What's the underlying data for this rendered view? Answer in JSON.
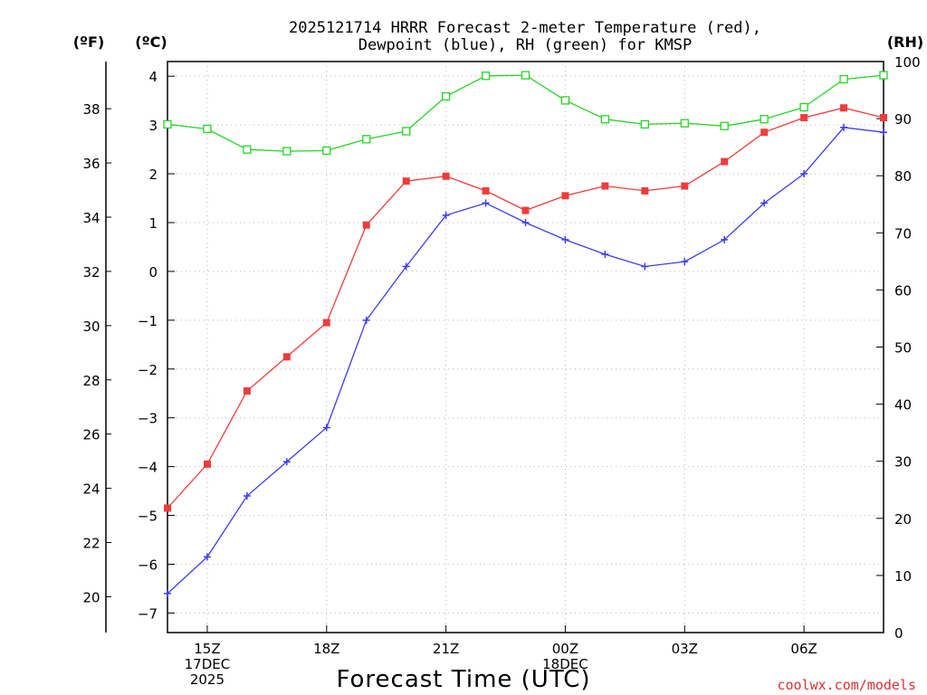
{
  "chart_data": {
    "type": "line",
    "title_lines": [
      "2025121714 HRRR Forecast 2-meter Temperature (red),",
      "Dewpoint (blue), RH (green) for KMSP"
    ],
    "xlabel": "Forecast Time (UTC)",
    "credit": "coolwx.com/models",
    "units": {
      "fahrenheit": "(ºF)",
      "celsius": "(ºC)",
      "rh": "(RH)"
    },
    "x_hours": [
      14,
      15,
      16,
      17,
      18,
      19,
      20,
      21,
      22,
      23,
      24,
      25,
      26,
      27,
      28,
      29,
      30,
      31,
      32
    ],
    "x_range": [
      14,
      32
    ],
    "x_ticks": [
      {
        "hour": 15,
        "lines": [
          "15Z",
          "17DEC",
          "2025"
        ]
      },
      {
        "hour": 18,
        "lines": [
          "18Z"
        ]
      },
      {
        "hour": 21,
        "lines": [
          "21Z"
        ]
      },
      {
        "hour": 24,
        "lines": [
          "00Z",
          "18DEC"
        ]
      },
      {
        "hour": 27,
        "lines": [
          "03Z"
        ]
      },
      {
        "hour": 30,
        "lines": [
          "06Z"
        ]
      }
    ],
    "celsius_axis": {
      "range": [
        -7.4,
        4.3
      ],
      "ticks": [
        "-7",
        "-6",
        "-5",
        "-4",
        "-3",
        "-2",
        "-1",
        "0",
        "1",
        "2",
        "3",
        "4"
      ]
    },
    "fahrenheit_axis": {
      "ticks": [
        "20",
        "22",
        "24",
        "26",
        "28",
        "30",
        "32",
        "34",
        "36",
        "38"
      ]
    },
    "rh_axis": {
      "range": [
        0,
        100
      ],
      "ticks": [
        "0",
        "10",
        "20",
        "30",
        "40",
        "50",
        "60",
        "70",
        "80",
        "90",
        "100"
      ]
    },
    "series": [
      {
        "name": "2-meter Temperature",
        "axis": "celsius",
        "color": "#f03c3c",
        "marker": "filled-square",
        "values": [
          -4.85,
          -3.95,
          -2.45,
          -1.75,
          -1.05,
          0.95,
          1.85,
          1.95,
          1.65,
          1.25,
          1.55,
          1.75,
          1.65,
          1.75,
          2.25,
          2.85,
          3.15,
          3.35,
          3.15
        ]
      },
      {
        "name": "Dewpoint",
        "axis": "celsius",
        "color": "#3c3cf0",
        "marker": "plus",
        "values": [
          -6.6,
          -5.85,
          -4.6,
          -3.9,
          -3.2,
          -1.0,
          0.1,
          1.15,
          1.4,
          1.0,
          0.65,
          0.35,
          0.1,
          0.2,
          0.65,
          1.4,
          2.0,
          2.95,
          2.85
        ]
      },
      {
        "name": "Relative Humidity",
        "axis": "rh",
        "color": "#28d228",
        "marker": "open-square",
        "values": [
          89.0,
          88.2,
          84.6,
          84.3,
          84.4,
          86.4,
          87.8,
          93.9,
          97.5,
          97.6,
          93.2,
          89.9,
          89.0,
          89.2,
          88.7,
          89.9,
          92.0,
          96.9,
          97.6
        ]
      }
    ]
  }
}
